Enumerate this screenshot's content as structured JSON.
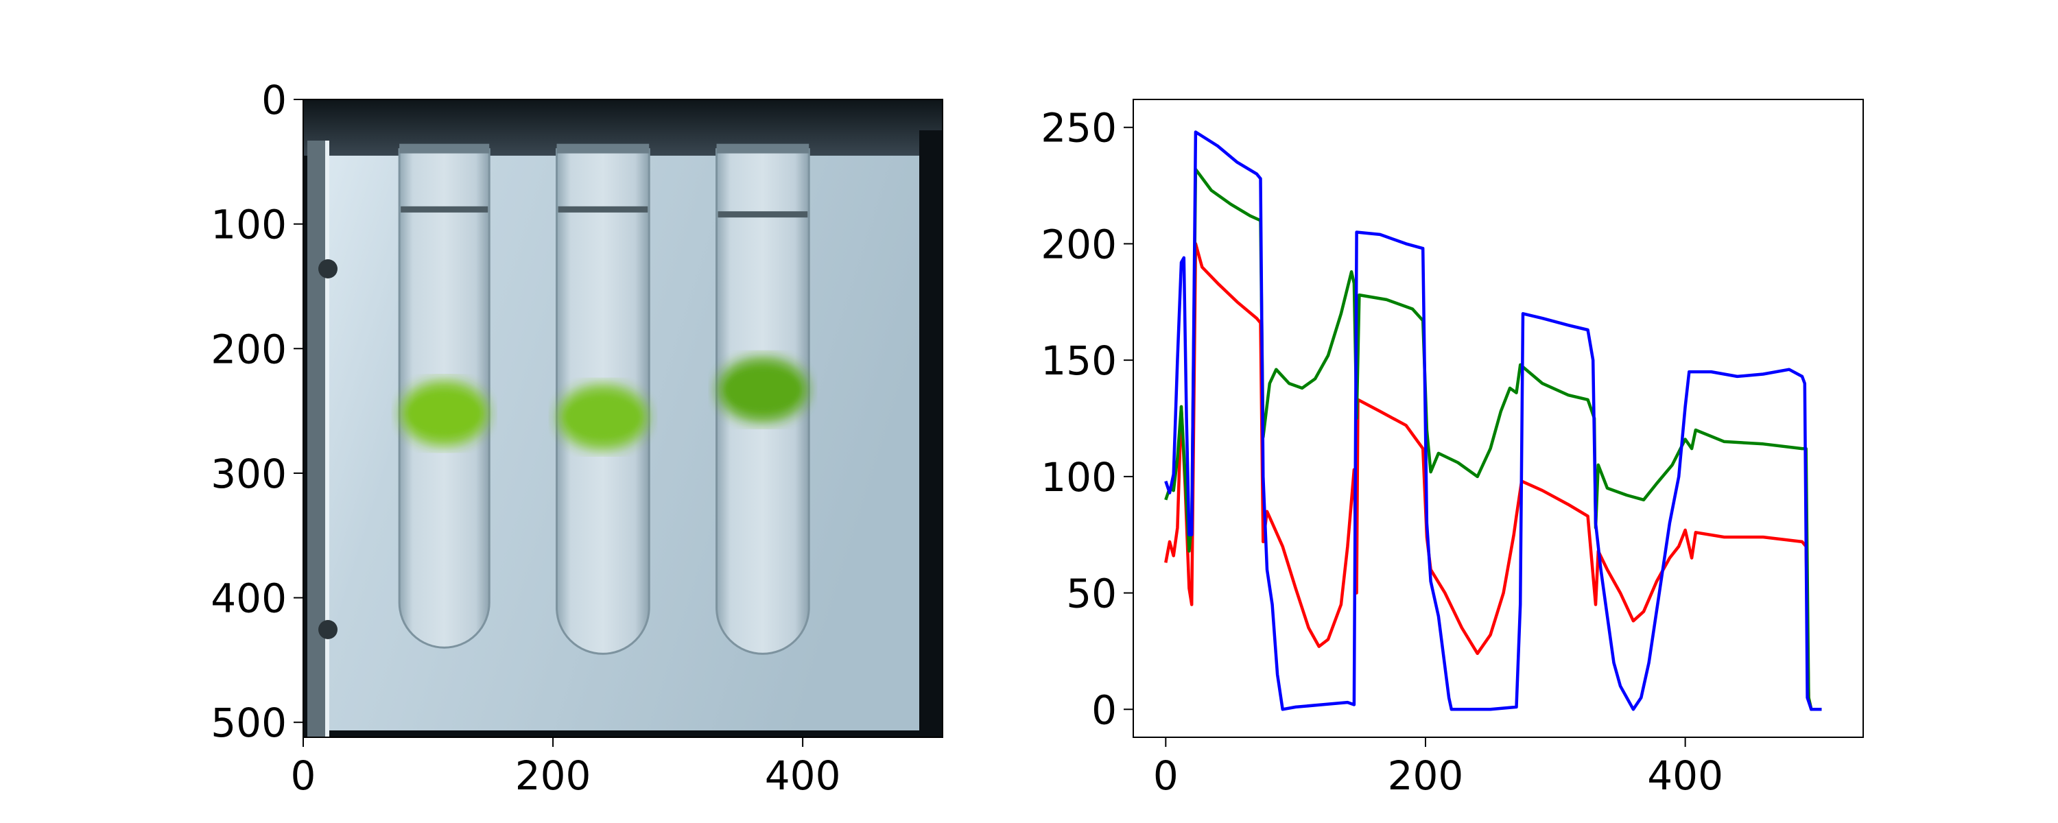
{
  "chart_data": [
    {
      "type": "heatmap",
      "description_kind": "image",
      "xticks": [
        0,
        200,
        400
      ],
      "yticks": [
        0,
        100,
        200,
        300,
        400,
        500
      ],
      "xlim": [
        0,
        512
      ],
      "ylim": [
        512,
        0
      ],
      "tubes": [
        {
          "x_center": 113,
          "top": 40,
          "bottom": 440,
          "half_width": 36,
          "meniscus_y": 88,
          "band_y": 252,
          "band_color": "#7bc41a"
        },
        {
          "x_center": 240,
          "top": 40,
          "bottom": 445,
          "half_width": 37,
          "meniscus_y": 88,
          "band_y": 255,
          "band_color": "#78c220"
        },
        {
          "x_center": 368,
          "top": 40,
          "bottom": 445,
          "half_width": 37,
          "meniscus_y": 92,
          "band_y": 233,
          "band_color": "#5aa818"
        }
      ]
    },
    {
      "type": "line",
      "xticks": [
        0,
        200,
        400
      ],
      "yticks": [
        0,
        50,
        100,
        150,
        200,
        250
      ],
      "xlim": [
        -25,
        537
      ],
      "ylim": [
        -12,
        262
      ],
      "grid": false,
      "series": [
        {
          "color": "#ff0000",
          "points": [
            [
              0,
              63
            ],
            [
              3,
              72
            ],
            [
              6,
              66
            ],
            [
              9,
              78
            ],
            [
              12,
              130
            ],
            [
              15,
              95
            ],
            [
              18,
              52
            ],
            [
              20,
              45
            ],
            [
              23,
              200
            ],
            [
              28,
              190
            ],
            [
              40,
              183
            ],
            [
              55,
              175
            ],
            [
              70,
              168
            ],
            [
              73,
              166
            ],
            [
              75,
              72
            ],
            [
              78,
              85
            ],
            [
              82,
              80
            ],
            [
              90,
              70
            ],
            [
              100,
              52
            ],
            [
              110,
              35
            ],
            [
              118,
              27
            ],
            [
              125,
              30
            ],
            [
              135,
              45
            ],
            [
              140,
              70
            ],
            [
              145,
              103
            ],
            [
              147,
              50
            ],
            [
              148,
              133
            ],
            [
              165,
              128
            ],
            [
              185,
              122
            ],
            [
              198,
              112
            ],
            [
              201,
              74
            ],
            [
              204,
              60
            ],
            [
              215,
              50
            ],
            [
              228,
              35
            ],
            [
              240,
              24
            ],
            [
              250,
              32
            ],
            [
              260,
              50
            ],
            [
              268,
              75
            ],
            [
              270,
              83
            ],
            [
              274,
              98
            ],
            [
              290,
              94
            ],
            [
              310,
              88
            ],
            [
              325,
              83
            ],
            [
              331,
              45
            ],
            [
              333,
              68
            ],
            [
              340,
              60
            ],
            [
              350,
              50
            ],
            [
              360,
              38
            ],
            [
              368,
              42
            ],
            [
              378,
              55
            ],
            [
              388,
              65
            ],
            [
              395,
              70
            ],
            [
              400,
              77
            ],
            [
              405,
              65
            ],
            [
              408,
              76
            ],
            [
              430,
              74
            ],
            [
              460,
              74
            ],
            [
              490,
              72
            ],
            [
              493,
              70
            ],
            [
              495,
              5
            ],
            [
              497,
              0
            ],
            [
              505,
              0
            ]
          ]
        },
        {
          "color": "#008000",
          "points": [
            [
              0,
              90
            ],
            [
              3,
              95
            ],
            [
              6,
              94
            ],
            [
              9,
              108
            ],
            [
              12,
              130
            ],
            [
              15,
              100
            ],
            [
              18,
              68
            ],
            [
              20,
              80
            ],
            [
              23,
              232
            ],
            [
              35,
              223
            ],
            [
              50,
              217
            ],
            [
              65,
              212
            ],
            [
              73,
              210
            ],
            [
              75,
              117
            ],
            [
              80,
              140
            ],
            [
              85,
              146
            ],
            [
              95,
              140
            ],
            [
              105,
              138
            ],
            [
              115,
              142
            ],
            [
              125,
              152
            ],
            [
              135,
              170
            ],
            [
              143,
              188
            ],
            [
              145,
              183
            ],
            [
              147,
              125
            ],
            [
              149,
              178
            ],
            [
              170,
              176
            ],
            [
              190,
              172
            ],
            [
              198,
              167
            ],
            [
              201,
              120
            ],
            [
              204,
              102
            ],
            [
              210,
              110
            ],
            [
              225,
              106
            ],
            [
              240,
              100
            ],
            [
              250,
              112
            ],
            [
              258,
              128
            ],
            [
              265,
              138
            ],
            [
              270,
              136
            ],
            [
              273,
              148
            ],
            [
              290,
              140
            ],
            [
              310,
              135
            ],
            [
              325,
              133
            ],
            [
              330,
              125
            ],
            [
              331,
              78
            ],
            [
              333,
              105
            ],
            [
              340,
              95
            ],
            [
              355,
              92
            ],
            [
              368,
              90
            ],
            [
              378,
              97
            ],
            [
              390,
              105
            ],
            [
              400,
              116
            ],
            [
              405,
              112
            ],
            [
              408,
              120
            ],
            [
              430,
              115
            ],
            [
              460,
              114
            ],
            [
              490,
              112
            ],
            [
              493,
              112
            ],
            [
              495,
              5
            ],
            [
              497,
              0
            ],
            [
              505,
              0
            ]
          ]
        },
        {
          "color": "#0000ff",
          "points": [
            [
              0,
              98
            ],
            [
              3,
              93
            ],
            [
              6,
              101
            ],
            [
              9,
              150
            ],
            [
              12,
              192
            ],
            [
              14,
              194
            ],
            [
              16,
              125
            ],
            [
              18,
              75
            ],
            [
              20,
              75
            ],
            [
              23,
              248
            ],
            [
              40,
              242
            ],
            [
              55,
              235
            ],
            [
              70,
              230
            ],
            [
              73,
              228
            ],
            [
              75,
              100
            ],
            [
              78,
              60
            ],
            [
              82,
              45
            ],
            [
              86,
              15
            ],
            [
              90,
              0
            ],
            [
              100,
              1
            ],
            [
              120,
              2
            ],
            [
              140,
              3
            ],
            [
              145,
              2
            ],
            [
              147,
              205
            ],
            [
              165,
              204
            ],
            [
              185,
              200
            ],
            [
              198,
              198
            ],
            [
              201,
              80
            ],
            [
              204,
              55
            ],
            [
              210,
              40
            ],
            [
              218,
              5
            ],
            [
              220,
              0
            ],
            [
              250,
              0
            ],
            [
              270,
              1
            ],
            [
              273,
              45
            ],
            [
              275,
              170
            ],
            [
              290,
              168
            ],
            [
              310,
              165
            ],
            [
              325,
              163
            ],
            [
              329,
              150
            ],
            [
              331,
              80
            ],
            [
              335,
              60
            ],
            [
              340,
              40
            ],
            [
              345,
              20
            ],
            [
              350,
              10
            ],
            [
              360,
              0
            ],
            [
              366,
              5
            ],
            [
              372,
              20
            ],
            [
              380,
              50
            ],
            [
              388,
              80
            ],
            [
              395,
              100
            ],
            [
              400,
              130
            ],
            [
              403,
              145
            ],
            [
              420,
              145
            ],
            [
              440,
              143
            ],
            [
              460,
              144
            ],
            [
              480,
              146
            ],
            [
              490,
              143
            ],
            [
              492,
              140
            ],
            [
              494,
              5
            ],
            [
              497,
              0
            ],
            [
              505,
              0
            ]
          ]
        }
      ]
    }
  ]
}
